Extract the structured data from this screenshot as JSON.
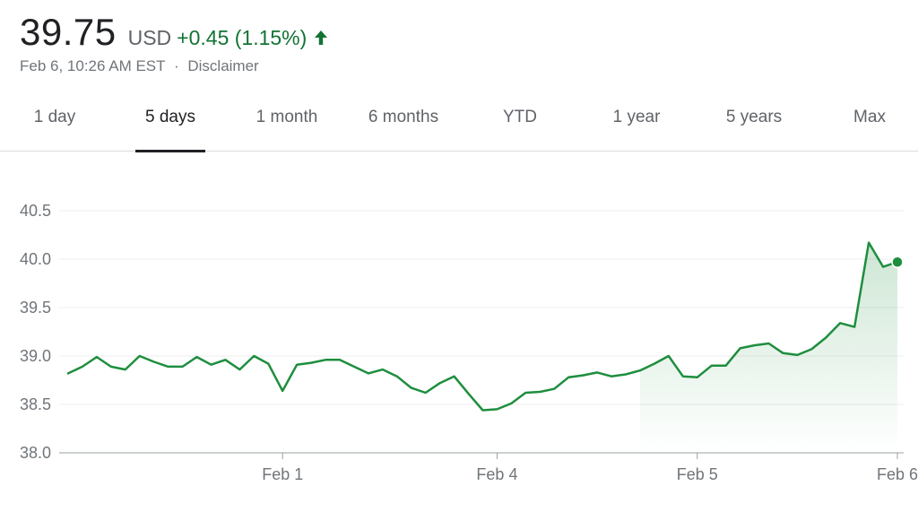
{
  "quote": {
    "price": "39.75",
    "currency": "USD",
    "change": "+0.45 (1.15%)",
    "timestamp": "Feb 6, 10:26 AM EST",
    "separator": "·",
    "disclaimer": "Disclaimer",
    "positive_color": "#137333"
  },
  "tabs": [
    {
      "label": "1 day",
      "active": false
    },
    {
      "label": "5 days",
      "active": true
    },
    {
      "label": "1 month",
      "active": false
    },
    {
      "label": "6 months",
      "active": false
    },
    {
      "label": "YTD",
      "active": false
    },
    {
      "label": "1 year",
      "active": false
    },
    {
      "label": "5 years",
      "active": false
    },
    {
      "label": "Max",
      "active": false
    }
  ],
  "chart_data": {
    "type": "line",
    "title": "",
    "xlabel": "",
    "ylabel": "",
    "ylim": [
      38.0,
      40.5
    ],
    "yticks": [
      "38.0",
      "38.5",
      "39.0",
      "39.5",
      "40.0",
      "40.5"
    ],
    "xticks": [
      {
        "label": "Feb 1",
        "index": 15
      },
      {
        "label": "Feb 4",
        "index": 30
      },
      {
        "label": "Feb 5",
        "index": 44
      },
      {
        "label": "Feb 6",
        "index": 58
      }
    ],
    "grid": true,
    "line_color": "#1e8e3e",
    "series": [
      {
        "values": [
          38.82,
          38.89,
          38.99,
          38.89,
          38.86,
          39.0,
          38.94,
          38.89,
          38.89,
          38.99,
          38.91,
          38.96,
          38.86,
          39.0,
          38.92,
          38.64,
          38.91,
          38.93,
          38.96,
          38.96,
          38.89,
          38.82,
          38.86,
          38.79,
          38.67,
          38.62,
          38.72,
          38.79,
          38.61,
          38.44,
          38.45,
          38.51,
          38.62,
          38.63,
          38.66,
          38.78,
          38.8,
          38.83,
          38.79,
          38.81,
          38.85,
          38.92,
          39.0,
          38.79,
          38.78,
          38.9,
          38.9,
          39.08,
          39.11,
          39.13,
          39.03,
          39.01,
          39.07,
          39.19,
          39.34,
          39.3,
          40.17,
          39.92,
          39.97
        ]
      }
    ]
  }
}
